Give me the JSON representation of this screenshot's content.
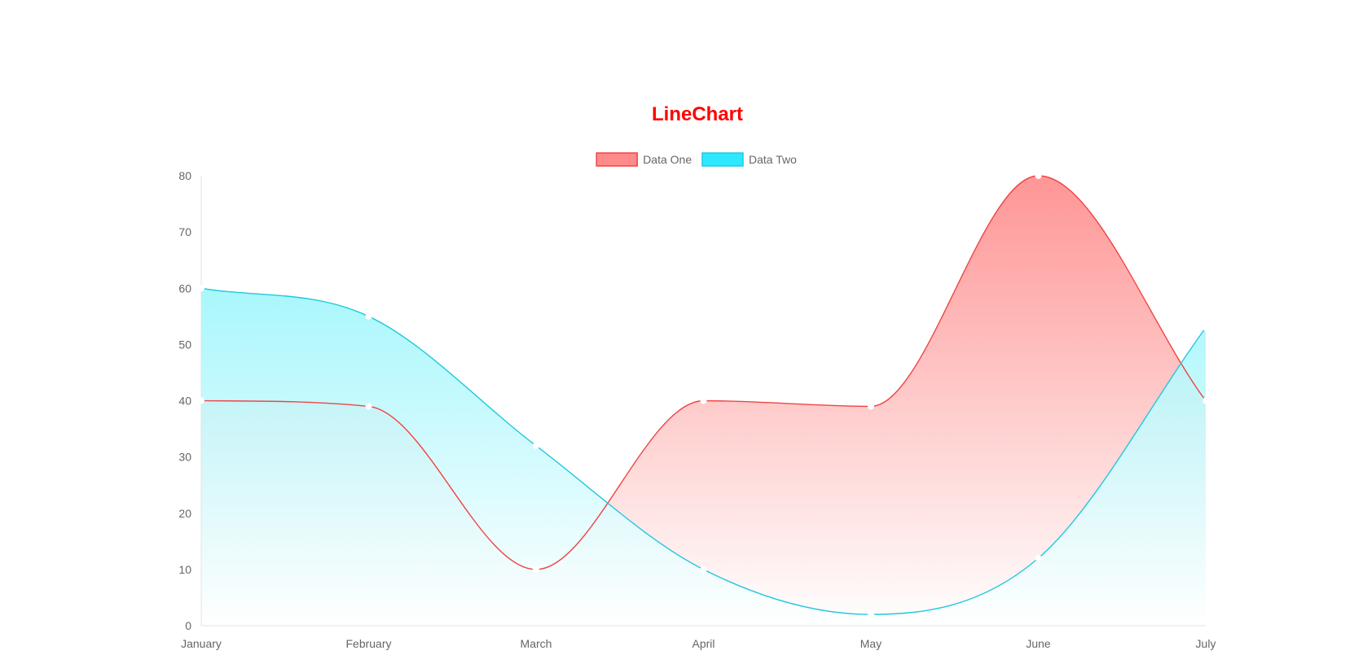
{
  "chart_data": {
    "type": "area",
    "title": "LineChart",
    "title_color": "#ff0000",
    "categories": [
      "January",
      "February",
      "March",
      "April",
      "May",
      "June",
      "July"
    ],
    "yticks": [
      "0",
      "10",
      "20",
      "30",
      "40",
      "50",
      "60",
      "70",
      "80"
    ],
    "ylim": [
      0,
      80
    ],
    "legend_position": "top",
    "grid": false,
    "series": [
      {
        "name": "Data One",
        "values": [
          40,
          39,
          10,
          40,
          39,
          80,
          40
        ],
        "line_color": "#f04444",
        "fill_top": "#ff8a8a",
        "fill_bottom": "#ffffff",
        "legend_fill": "#ff8a8a"
      },
      {
        "name": "Data Two",
        "values": [
          60,
          55,
          32,
          10,
          2,
          12,
          53
        ],
        "line_color": "#22c8dd",
        "fill_top": "#7ff3fb",
        "fill_bottom": "#ffffff",
        "legend_fill": "#2ee8ff"
      }
    ]
  }
}
